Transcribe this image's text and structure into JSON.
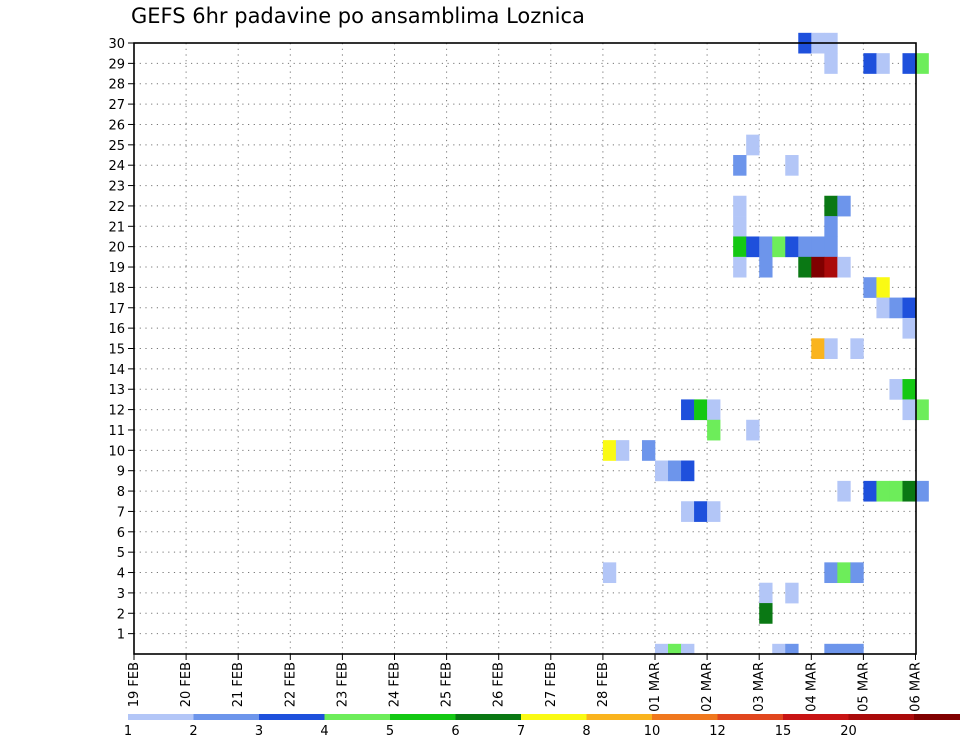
{
  "chart_data": {
    "type": "heatmap",
    "title": "GEFS 6hr padavine po ansamblima Loznica",
    "xlabel": "",
    "ylabel": "",
    "grid": true,
    "x_labels": [
      "19 FEB",
      "20 FEB",
      "21 FEB",
      "22 FEB",
      "23 FEB",
      "24 FEB",
      "25 FEB",
      "26 FEB",
      "27 FEB",
      "28 FEB",
      "01 MAR",
      "02 MAR",
      "03 MAR",
      "04 MAR",
      "05 MAR",
      "06 MAR"
    ],
    "y_labels": [
      "1",
      "2",
      "3",
      "4",
      "5",
      "6",
      "7",
      "8",
      "9",
      "10",
      "11",
      "12",
      "13",
      "14",
      "15",
      "16",
      "17",
      "18",
      "19",
      "20",
      "21",
      "22",
      "23",
      "24",
      "25",
      "26",
      "27",
      "28",
      "29",
      "30"
    ],
    "ylim": [
      0,
      30
    ],
    "legend": {
      "placement": "bottom",
      "colors": [
        "#b3c6f7",
        "#6d95eb",
        "#1e50dc",
        "#6ded5a",
        "#14c814",
        "#0a7814",
        "#fafa14",
        "#fab41e",
        "#f0781e",
        "#e1461e",
        "#c81414",
        "#aa0a0a",
        "#800000"
      ],
      "labels": [
        "1",
        "2",
        "3",
        "4",
        "5",
        "6",
        "7",
        "8",
        "10",
        "12",
        "15",
        "20"
      ]
    },
    "cells_note": "member = ensemble member (0-30); period = 6-hour step from 19 FEB 00z; color = precipitation class",
    "cells": [
      {
        "member": 30,
        "period": 51,
        "color": "#1e50dc"
      },
      {
        "member": 30,
        "period": 52,
        "color": "#b3c6f7"
      },
      {
        "member": 30,
        "period": 53,
        "color": "#b3c6f7"
      },
      {
        "member": 29,
        "period": 53,
        "color": "#b3c6f7"
      },
      {
        "member": 29,
        "period": 56,
        "color": "#1e50dc"
      },
      {
        "member": 29,
        "period": 57,
        "color": "#b3c6f7"
      },
      {
        "member": 29,
        "period": 59,
        "color": "#1e50dc"
      },
      {
        "member": 29,
        "period": 60,
        "color": "#6ded5a"
      },
      {
        "member": 25,
        "period": 47,
        "color": "#b3c6f7"
      },
      {
        "member": 24,
        "period": 46,
        "color": "#6d95eb"
      },
      {
        "member": 24,
        "period": 50,
        "color": "#b3c6f7"
      },
      {
        "member": 22,
        "period": 46,
        "color": "#b3c6f7"
      },
      {
        "member": 22,
        "period": 53,
        "color": "#0a7814"
      },
      {
        "member": 22,
        "period": 54,
        "color": "#6d95eb"
      },
      {
        "member": 21,
        "period": 46,
        "color": "#b3c6f7"
      },
      {
        "member": 21,
        "period": 53,
        "color": "#6d95eb"
      },
      {
        "member": 20,
        "period": 46,
        "color": "#14c814"
      },
      {
        "member": 20,
        "period": 47,
        "color": "#1e50dc"
      },
      {
        "member": 20,
        "period": 48,
        "color": "#6d95eb"
      },
      {
        "member": 20,
        "period": 49,
        "color": "#6ded5a"
      },
      {
        "member": 20,
        "period": 50,
        "color": "#1e50dc"
      },
      {
        "member": 20,
        "period": 51,
        "color": "#6d95eb"
      },
      {
        "member": 20,
        "period": 52,
        "color": "#6d95eb"
      },
      {
        "member": 20,
        "period": 53,
        "color": "#6d95eb"
      },
      {
        "member": 19,
        "period": 46,
        "color": "#b3c6f7"
      },
      {
        "member": 19,
        "period": 48,
        "color": "#6d95eb"
      },
      {
        "member": 19,
        "period": 51,
        "color": "#0a7814"
      },
      {
        "member": 19,
        "period": 52,
        "color": "#800000"
      },
      {
        "member": 19,
        "period": 53,
        "color": "#aa0a0a"
      },
      {
        "member": 19,
        "period": 54,
        "color": "#b3c6f7"
      },
      {
        "member": 18,
        "period": 56,
        "color": "#6d95eb"
      },
      {
        "member": 18,
        "period": 57,
        "color": "#fafa14"
      },
      {
        "member": 17,
        "period": 57,
        "color": "#b3c6f7"
      },
      {
        "member": 17,
        "period": 58,
        "color": "#6d95eb"
      },
      {
        "member": 17,
        "period": 59,
        "color": "#1e50dc"
      },
      {
        "member": 16,
        "period": 59,
        "color": "#b3c6f7"
      },
      {
        "member": 15,
        "period": 52,
        "color": "#fab41e"
      },
      {
        "member": 15,
        "period": 53,
        "color": "#b3c6f7"
      },
      {
        "member": 15,
        "period": 55,
        "color": "#b3c6f7"
      },
      {
        "member": 13,
        "period": 58,
        "color": "#b3c6f7"
      },
      {
        "member": 13,
        "period": 59,
        "color": "#14c814"
      },
      {
        "member": 12,
        "period": 42,
        "color": "#1e50dc"
      },
      {
        "member": 12,
        "period": 43,
        "color": "#14c814"
      },
      {
        "member": 12,
        "period": 44,
        "color": "#b3c6f7"
      },
      {
        "member": 12,
        "period": 59,
        "color": "#b3c6f7"
      },
      {
        "member": 12,
        "period": 60,
        "color": "#6ded5a"
      },
      {
        "member": 11,
        "period": 44,
        "color": "#6ded5a"
      },
      {
        "member": 11,
        "period": 47,
        "color": "#b3c6f7"
      },
      {
        "member": 10,
        "period": 36,
        "color": "#fafa14"
      },
      {
        "member": 10,
        "period": 37,
        "color": "#b3c6f7"
      },
      {
        "member": 10,
        "period": 39,
        "color": "#6d95eb"
      },
      {
        "member": 9,
        "period": 40,
        "color": "#b3c6f7"
      },
      {
        "member": 9,
        "period": 41,
        "color": "#6d95eb"
      },
      {
        "member": 9,
        "period": 42,
        "color": "#1e50dc"
      },
      {
        "member": 8,
        "period": 54,
        "color": "#b3c6f7"
      },
      {
        "member": 8,
        "period": 56,
        "color": "#1e50dc"
      },
      {
        "member": 8,
        "period": 57,
        "color": "#6ded5a"
      },
      {
        "member": 8,
        "period": 58,
        "color": "#6ded5a"
      },
      {
        "member": 8,
        "period": 59,
        "color": "#0a7814"
      },
      {
        "member": 8,
        "period": 60,
        "color": "#6d95eb"
      },
      {
        "member": 7,
        "period": 42,
        "color": "#b3c6f7"
      },
      {
        "member": 7,
        "period": 43,
        "color": "#1e50dc"
      },
      {
        "member": 7,
        "period": 44,
        "color": "#b3c6f7"
      },
      {
        "member": 4,
        "period": 36,
        "color": "#b3c6f7"
      },
      {
        "member": 4,
        "period": 53,
        "color": "#6d95eb"
      },
      {
        "member": 4,
        "period": 54,
        "color": "#6ded5a"
      },
      {
        "member": 4,
        "period": 55,
        "color": "#6d95eb"
      },
      {
        "member": 3,
        "period": 48,
        "color": "#b3c6f7"
      },
      {
        "member": 3,
        "period": 50,
        "color": "#b3c6f7"
      },
      {
        "member": 2,
        "period": 48,
        "color": "#0a7814"
      },
      {
        "member": 0,
        "period": 40,
        "color": "#b3c6f7"
      },
      {
        "member": 0,
        "period": 41,
        "color": "#6ded5a"
      },
      {
        "member": 0,
        "period": 42,
        "color": "#b3c6f7"
      },
      {
        "member": 0,
        "period": 49,
        "color": "#b3c6f7"
      },
      {
        "member": 0,
        "period": 50,
        "color": "#6d95eb"
      },
      {
        "member": 0,
        "period": 53,
        "color": "#6d95eb"
      },
      {
        "member": 0,
        "period": 54,
        "color": "#6d95eb"
      },
      {
        "member": 0,
        "period": 55,
        "color": "#6d95eb"
      }
    ]
  }
}
